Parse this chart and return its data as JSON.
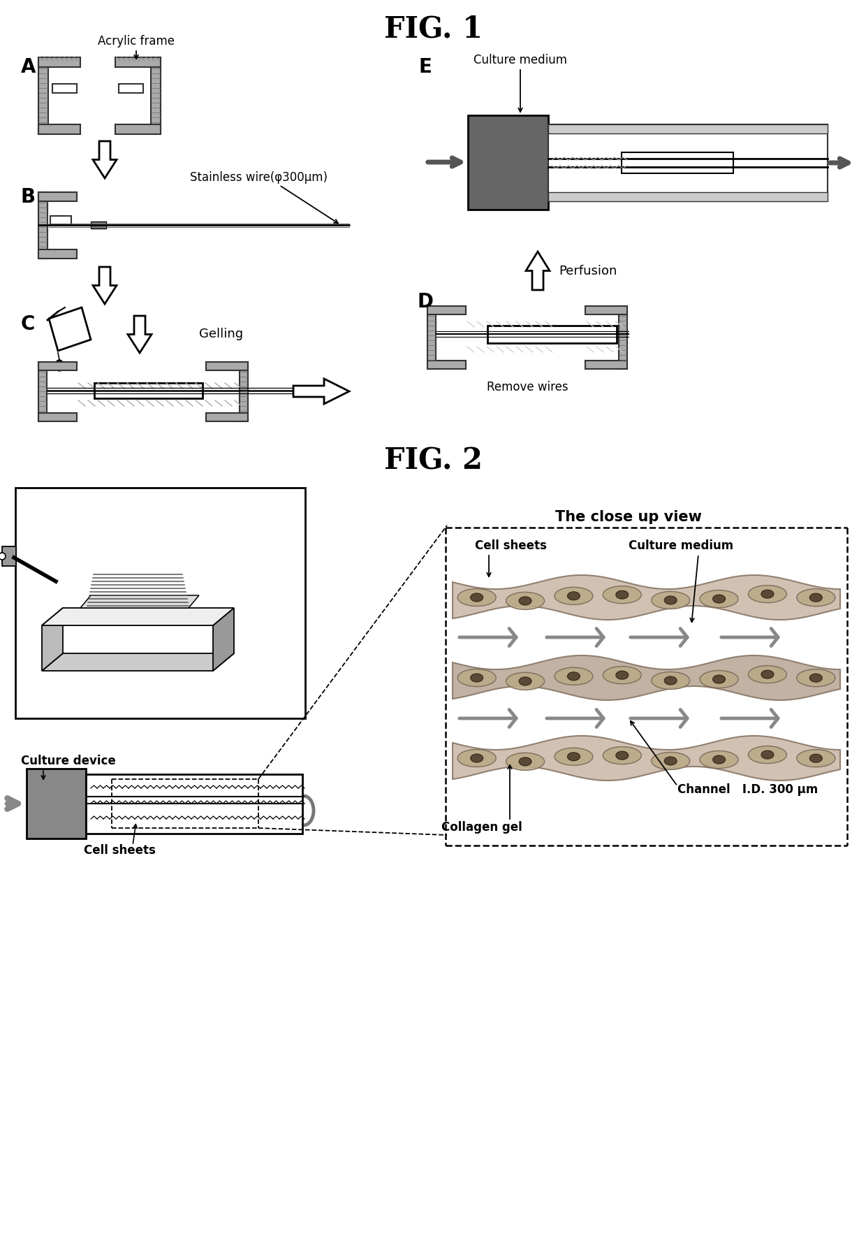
{
  "fig1_title": "FIG. 1",
  "fig2_title": "FIG. 2",
  "label_A": "A",
  "label_B": "B",
  "label_C": "C",
  "label_D": "D",
  "label_E": "E",
  "text_acrylic_frame": "Acrylic frame",
  "text_stainless_wire": "Stainless wire(φ300μm)",
  "text_gelling": "Gelling",
  "text_remove_wires": "Remove wires",
  "text_perfusion": "Perfusion",
  "text_culture_medium_E": "Culture medium",
  "text_culture_device": "Culture device",
  "text_cell_sheets_fig2": "Cell sheets",
  "text_close_up": "The close up view",
  "text_cell_sheets": "Cell sheets",
  "text_culture_medium": "Culture medium",
  "text_channel": "Channel   I.D. 300 μm",
  "text_collagen_gel": "Collagen gel",
  "bg_color": "#ffffff"
}
